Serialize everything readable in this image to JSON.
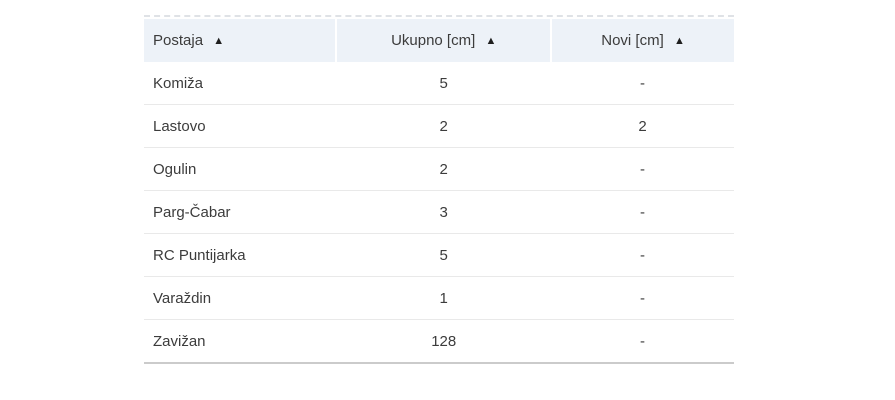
{
  "table": {
    "columns": [
      {
        "label": "Postaja",
        "sort": "▲"
      },
      {
        "label": "Ukupno [cm]",
        "sort": "▲"
      },
      {
        "label": "Novi [cm]",
        "sort": "▲"
      }
    ],
    "rows": [
      {
        "postaja": "Komiža",
        "ukupno": "5",
        "novi": "-"
      },
      {
        "postaja": "Lastovo",
        "ukupno": "2",
        "novi": "2"
      },
      {
        "postaja": "Ogulin",
        "ukupno": "2",
        "novi": "-"
      },
      {
        "postaja": "Parg-Čabar",
        "ukupno": "3",
        "novi": "-"
      },
      {
        "postaja": "RC Puntijarka",
        "ukupno": "5",
        "novi": "-"
      },
      {
        "postaja": "Varaždin",
        "ukupno": "1",
        "novi": "-"
      },
      {
        "postaja": "Zavižan",
        "ukupno": "128",
        "novi": "-"
      }
    ]
  },
  "colors": {
    "header_bg": "#edf2f8",
    "text": "#3c3c3c",
    "row_divider": "#e9e9e9",
    "bottom_border": "#cbcbcb",
    "top_dashed_border": "#dfe2e6"
  }
}
